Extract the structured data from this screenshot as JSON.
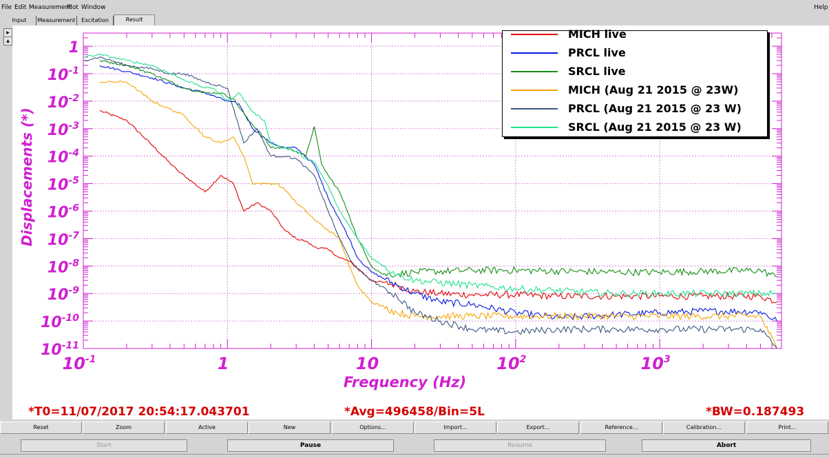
{
  "menu": {
    "items": [
      "File",
      "Edit",
      "Measurement",
      "Plot",
      "Window"
    ],
    "help": "Help"
  },
  "tabs": [
    "Input",
    "Measurement",
    "Excitation",
    "Result"
  ],
  "active_tab": "Result",
  "colors": {
    "axis": "#d11fd1",
    "grid": "#d88ad8",
    "footer_text": "#d40000"
  },
  "footer": {
    "t0": "*T0=11/07/2017 20:54:17.043701",
    "avg": "*Avg=496458/Bin=5L",
    "bw": "*BW=0.187493"
  },
  "buttons_row1": [
    "Reset",
    "Zoom",
    "Active",
    "New",
    "Options...",
    "Import...",
    "Export...",
    "Reference...",
    "Calibration...",
    "Print..."
  ],
  "buttons_row2": [
    {
      "label": "Start",
      "enabled": false
    },
    {
      "label": "Pause",
      "enabled": true
    },
    {
      "label": "Resume",
      "enabled": false
    },
    {
      "label": "Abort",
      "enabled": true
    }
  ],
  "chart_data": {
    "type": "line",
    "title": "",
    "xlabel": "Frequency (Hz)",
    "ylabel": "Displacements (*)",
    "xscale": "log",
    "yscale": "log",
    "xlim": [
      0.1,
      7000
    ],
    "ylim": [
      1e-11,
      3
    ],
    "x_ticks": [
      {
        "base": "10",
        "exp": "-1",
        "value": 0.1
      },
      {
        "base": "1",
        "exp": "",
        "value": 1
      },
      {
        "base": "10",
        "exp": "",
        "value": 10
      },
      {
        "base": "10",
        "exp": "2",
        "value": 100
      },
      {
        "base": "10",
        "exp": "3",
        "value": 1000
      }
    ],
    "y_ticks": [
      {
        "base": "1",
        "exp": "",
        "value": 1
      },
      {
        "base": "10",
        "exp": "-1",
        "value": 0.1
      },
      {
        "base": "10",
        "exp": "-2",
        "value": 0.01
      },
      {
        "base": "10",
        "exp": "-3",
        "value": 0.001
      },
      {
        "base": "10",
        "exp": "-4",
        "value": 0.0001
      },
      {
        "base": "10",
        "exp": "-5",
        "value": 1e-05
      },
      {
        "base": "10",
        "exp": "-6",
        "value": 1e-06
      },
      {
        "base": "10",
        "exp": "-7",
        "value": 1e-07
      },
      {
        "base": "10",
        "exp": "-8",
        "value": 1e-08
      },
      {
        "base": "10",
        "exp": "-9",
        "value": 1e-09
      },
      {
        "base": "10",
        "exp": "-10",
        "value": 1e-10
      },
      {
        "base": "10",
        "exp": "-11",
        "value": 1e-11
      }
    ],
    "grid": true,
    "legend_position": "top-right",
    "series": [
      {
        "name": "MICH live",
        "color": "#e00000",
        "x": [
          0.13,
          0.2,
          0.3,
          0.45,
          0.7,
          0.9,
          1.1,
          1.3,
          1.6,
          2.0,
          2.5,
          3.0,
          3.5,
          4.0,
          5.0,
          6.0,
          7.0,
          8.0,
          10,
          15,
          20,
          30,
          50,
          100,
          200,
          500,
          1000,
          2000,
          5000,
          6500
        ],
        "y": [
          0.0045,
          0.002,
          0.00025,
          3e-05,
          5e-06,
          2e-05,
          1e-05,
          1e-06,
          2e-06,
          1e-06,
          2e-07,
          1e-07,
          8e-08,
          5e-08,
          4e-08,
          2e-08,
          1.5e-08,
          8e-09,
          3e-09,
          2e-09,
          1.2e-09,
          1e-09,
          9e-10,
          9e-10,
          8e-10,
          8e-10,
          8e-10,
          8e-10,
          8e-10,
          5e-10
        ]
      },
      {
        "name": "PRCL live",
        "color": "#0018e0",
        "x": [
          0.13,
          0.2,
          0.3,
          0.5,
          0.7,
          1.0,
          1.2,
          1.5,
          2.0,
          2.5,
          3.0,
          4.0,
          5.0,
          6.0,
          7.0,
          8.0,
          10,
          15,
          20,
          30,
          50,
          100,
          200,
          500,
          1000,
          2000,
          5000,
          6500
        ],
        "y": [
          0.2,
          0.12,
          0.07,
          0.03,
          0.02,
          0.01,
          0.008,
          0.001,
          0.0003,
          0.0002,
          0.0002,
          5e-05,
          3e-06,
          5e-07,
          1e-07,
          2e-08,
          6e-09,
          2e-09,
          1e-09,
          5e-10,
          4e-10,
          2e-10,
          1.3e-10,
          1.7e-10,
          2e-10,
          2.3e-10,
          2.2e-10,
          1e-10
        ]
      },
      {
        "name": "SRCL live",
        "color": "#128c12",
        "x": [
          0.13,
          0.2,
          0.3,
          0.5,
          0.7,
          0.9,
          1.1,
          1.4,
          1.7,
          2.0,
          2.5,
          3.0,
          3.5,
          4.0,
          4.5,
          5.0,
          6.0,
          7.0,
          8.0,
          10,
          12,
          15,
          20,
          50,
          100,
          500,
          1000,
          5000,
          6500
        ],
        "y": [
          0.3,
          0.2,
          0.1,
          0.03,
          0.02,
          0.02,
          0.012,
          0.002,
          0.0007,
          0.0002,
          0.0002,
          0.00015,
          0.0001,
          0.0012,
          5e-05,
          2e-05,
          5e-06,
          7e-07,
          1e-07,
          1e-08,
          5e-09,
          5e-09,
          6e-09,
          7e-09,
          7e-09,
          6e-09,
          6e-09,
          7e-09,
          4e-09
        ]
      },
      {
        "name": "MICH (Aug 21 2015 @ 23W)",
        "color": "#f4a400",
        "x": [
          0.13,
          0.2,
          0.3,
          0.5,
          0.7,
          0.9,
          1.1,
          1.3,
          1.5,
          1.8,
          2.2,
          2.6,
          3.0,
          3.5,
          4.0,
          5.0,
          6.0,
          7.0,
          8.0,
          10,
          15,
          20,
          50,
          100,
          500,
          1000,
          5000,
          6500
        ],
        "y": [
          0.05,
          0.05,
          0.01,
          0.003,
          0.0005,
          0.0003,
          0.0005,
          0.0001,
          1e-05,
          1e-05,
          1e-05,
          5e-06,
          2e-06,
          1e-06,
          5e-07,
          2e-07,
          1e-07,
          1e-08,
          2e-09,
          5e-10,
          2e-10,
          1.5e-10,
          1.5e-10,
          1.5e-10,
          1.5e-10,
          1.5e-10,
          1.5e-10,
          1e-11
        ]
      },
      {
        "name": "PRCL (Aug 21 2015 @ 23 W)",
        "color": "#3a5580",
        "x": [
          0.1,
          0.13,
          0.2,
          0.3,
          0.4,
          0.5,
          0.7,
          1.0,
          1.3,
          1.6,
          2.0,
          2.5,
          3.0,
          4.0,
          5.0,
          6.0,
          7.0,
          8.0,
          10,
          15,
          20,
          30,
          50,
          100,
          200,
          500,
          1000,
          5000,
          6500
        ],
        "y": [
          0.3,
          0.4,
          0.2,
          0.15,
          0.1,
          0.1,
          0.05,
          0.03,
          0.0003,
          0.001,
          0.0001,
          0.0001,
          8e-05,
          2e-05,
          1e-06,
          1e-07,
          2e-08,
          8e-09,
          3e-09,
          8e-10,
          2e-10,
          1e-10,
          5e-11,
          4e-11,
          5e-11,
          5e-11,
          5e-11,
          5e-11,
          1e-11
        ]
      },
      {
        "name": "SRCL (Aug 21 2015 @ 23 W)",
        "color": "#20e08c",
        "x": [
          0.1,
          0.13,
          0.2,
          0.3,
          0.5,
          0.7,
          0.8,
          1.0,
          1.2,
          1.5,
          1.8,
          2.0,
          2.5,
          3.0,
          3.5,
          4.0,
          5.0,
          6.0,
          8.0,
          10,
          15,
          20,
          50,
          100,
          500,
          1000,
          5000,
          6500
        ],
        "y": [
          0.4,
          0.5,
          0.3,
          0.2,
          0.06,
          0.03,
          0.03,
          0.01,
          0.02,
          0.004,
          0.002,
          0.0003,
          0.0002,
          0.00015,
          8e-05,
          6e-05,
          8e-06,
          1e-06,
          1e-07,
          2e-08,
          5e-09,
          3e-09,
          2e-09,
          1.5e-09,
          1e-09,
          1e-09,
          1e-09,
          1e-09
        ]
      }
    ]
  }
}
